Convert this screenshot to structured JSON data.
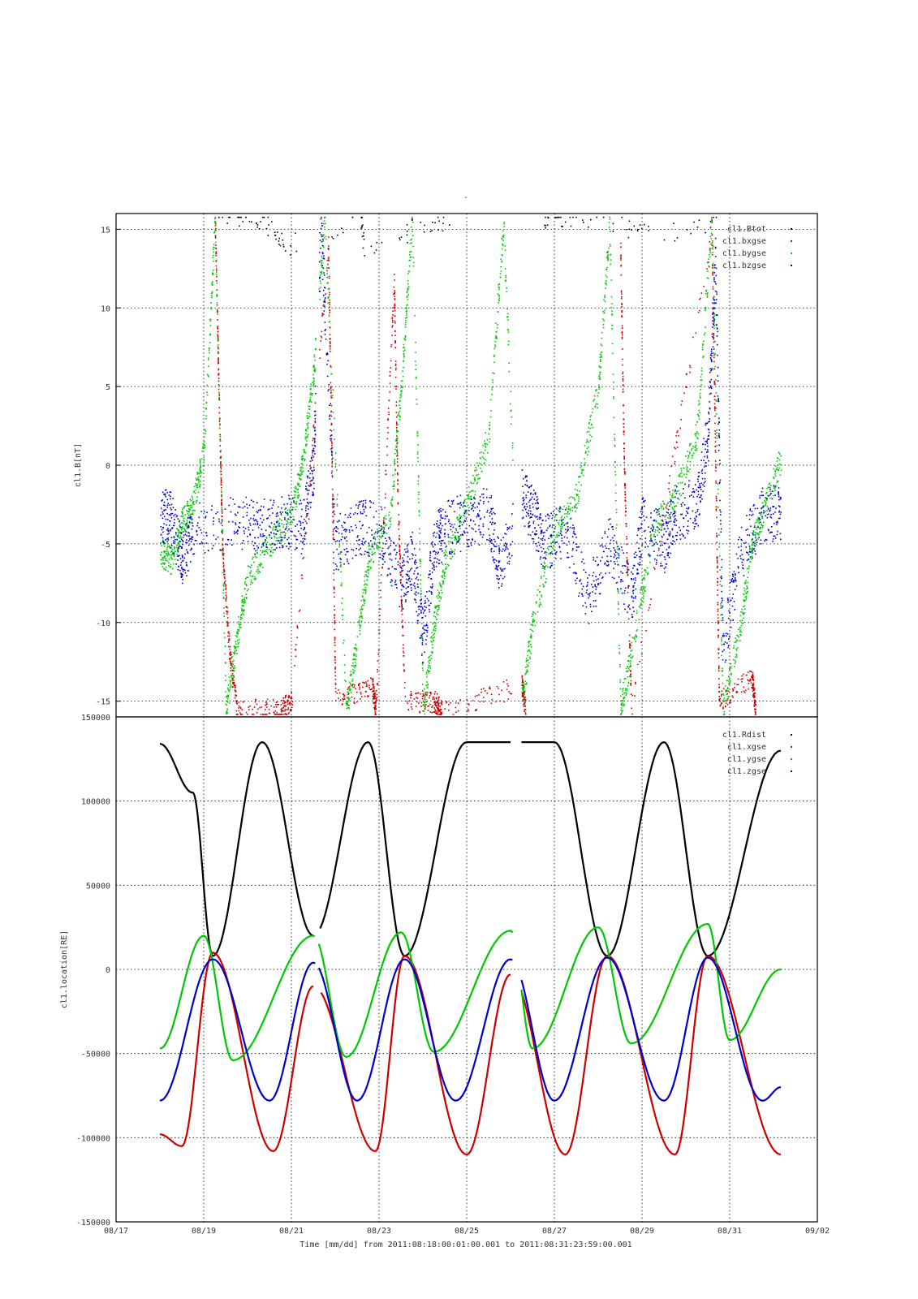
{
  "figure_mark": "-",
  "chart_data": [
    {
      "type": "scatter",
      "panel": "top",
      "ylabel": "cl1.B[nT]",
      "ylim": [
        -16,
        16
      ],
      "yticks": [
        15,
        10,
        5,
        0,
        -5,
        -10,
        -15
      ],
      "ytick_labels": [
        "15",
        "10",
        "5",
        "0",
        "-5",
        "-10",
        "-15"
      ],
      "xlim": [
        "2011-08-17",
        "2011-09-02"
      ],
      "grid": true,
      "legend_placement": "top-right",
      "series": [
        {
          "name": "cl1.Btot",
          "color": "#000000",
          "description_points": [
            [
              "2011-08-19 08:00",
              15.8
            ],
            [
              "2011-08-20 00:00",
              15.9
            ],
            [
              "2011-08-20 12:00",
              15.2
            ],
            [
              "2011-08-20 20:00",
              14.0
            ],
            [
              "2011-08-22 14:00",
              15.5
            ],
            [
              "2011-08-22 16:00",
              13.5
            ],
            [
              "2011-08-23 18:00",
              15.0
            ],
            [
              "2011-08-24 16:00",
              15.8
            ],
            [
              "2011-08-26 18:00",
              15.8
            ],
            [
              "2011-08-27 04:00",
              15.9
            ],
            [
              "2011-08-28 08:00",
              15.5
            ],
            [
              "2011-08-29 04:00",
              14.5
            ],
            [
              "2011-08-30 18:00",
              15.6
            ]
          ]
        },
        {
          "name": "cl1.bxgse",
          "color": "#cc0000",
          "description_points": [
            [
              "2011-08-19 06:00",
              15.8
            ],
            [
              "2011-08-19 08:00",
              5.0
            ],
            [
              "2011-08-19 10:00",
              -5.0
            ],
            [
              "2011-08-19 14:00",
              -12.0
            ],
            [
              "2011-08-19 18:00",
              -15.5
            ],
            [
              "2011-08-20 18:00",
              -15.5
            ],
            [
              "2011-08-21 00:00",
              -15.0
            ],
            [
              "2011-08-21 20:00",
              14.0
            ],
            [
              "2011-08-21 22:00",
              0.0
            ],
            [
              "2011-08-22 00:00",
              -15.0
            ],
            [
              "2011-08-22 20:00",
              -14.0
            ],
            [
              "2011-08-22 22:00",
              -15.5
            ],
            [
              "2011-08-23 08:00",
              12.0
            ],
            [
              "2011-08-23 10:00",
              -2.0
            ],
            [
              "2011-08-23 14:00",
              -15.0
            ],
            [
              "2011-08-24 06:00",
              -15.0
            ],
            [
              "2011-08-24 10:00",
              -15.5
            ],
            [
              "2011-08-26 06:00",
              -14.0
            ],
            [
              "2011-08-26 08:00",
              -15.5
            ],
            [
              "2011-08-28 12:00",
              14.0
            ],
            [
              "2011-08-28 14:00",
              0.0
            ],
            [
              "2011-08-28 18:00",
              -15.5
            ],
            [
              "2011-08-30 14:00",
              15.0
            ],
            [
              "2011-08-30 16:00",
              0.0
            ],
            [
              "2011-08-30 18:00",
              -15.0
            ],
            [
              "2011-08-31 12:00",
              -13.5
            ],
            [
              "2011-08-31 14:00",
              -15.5
            ]
          ]
        },
        {
          "name": "cl1.bygse",
          "color": "#00c800",
          "description_points": [
            [
              "2011-08-18 00:00",
              -5.5
            ],
            [
              "2011-08-18 06:00",
              -6.0
            ],
            [
              "2011-08-18 12:00",
              -3.5
            ],
            [
              "2011-08-18 18:00",
              -2.5
            ],
            [
              "2011-08-19 00:00",
              1.0
            ],
            [
              "2011-08-19 06:00",
              15.8
            ],
            [
              "2011-08-19 12:00",
              -15.5
            ],
            [
              "2011-08-19 18:00",
              -11.0
            ],
            [
              "2011-08-20 00:00",
              -7.0
            ],
            [
              "2011-08-20 12:00",
              -5.0
            ],
            [
              "2011-08-21 00:00",
              -3.0
            ],
            [
              "2011-08-21 06:00",
              0.0
            ],
            [
              "2011-08-21 12:00",
              6.0
            ],
            [
              "2011-08-21 18:00",
              15.8
            ],
            [
              "2011-08-22 06:00",
              -15.5
            ],
            [
              "2011-08-22 12:00",
              -11.0
            ],
            [
              "2011-08-22 18:00",
              -6.0
            ],
            [
              "2011-08-23 06:00",
              -3.0
            ],
            [
              "2011-08-23 12:00",
              5.0
            ],
            [
              "2011-08-23 18:00",
              15.8
            ],
            [
              "2011-08-24 00:00",
              -15.5
            ],
            [
              "2011-08-24 06:00",
              -10.0
            ],
            [
              "2011-08-24 12:00",
              -6.0
            ],
            [
              "2011-08-25 00:00",
              -2.5
            ],
            [
              "2011-08-25 12:00",
              2.0
            ],
            [
              "2011-08-25 20:00",
              15.5
            ],
            [
              "2011-08-26 06:00",
              -15.0
            ],
            [
              "2011-08-26 12:00",
              -10.0
            ],
            [
              "2011-08-27 00:00",
              -4.0
            ],
            [
              "2011-08-27 12:00",
              -2.0
            ],
            [
              "2011-08-28 00:00",
              5.0
            ],
            [
              "2011-08-28 06:00",
              15.5
            ],
            [
              "2011-08-28 12:00",
              -15.5
            ],
            [
              "2011-08-28 18:00",
              -12.0
            ],
            [
              "2011-08-29 06:00",
              -4.0
            ],
            [
              "2011-08-29 18:00",
              -2.0
            ],
            [
              "2011-08-30 06:00",
              2.0
            ],
            [
              "2011-08-30 14:00",
              15.8
            ],
            [
              "2011-08-30 20:00",
              -15.5
            ],
            [
              "2011-08-31 06:00",
              -10.0
            ],
            [
              "2011-08-31 12:00",
              -5.0
            ],
            [
              "2011-08-31 18:00",
              -3.0
            ],
            [
              "2011-09-01 04:00",
              0.5
            ]
          ]
        },
        {
          "name": "cl1.bzgse",
          "color": "#0000c8",
          "description_points": [
            [
              "2011-08-18 00:00",
              -3.0
            ],
            [
              "2011-08-18 06:00",
              -3.5
            ],
            [
              "2011-08-18 12:00",
              -6.0
            ],
            [
              "2011-08-18 18:00",
              -4.0
            ],
            [
              "2011-08-19 18:00",
              -3.5
            ],
            [
              "2011-08-20 06:00",
              -4.0
            ],
            [
              "2011-08-20 18:00",
              -3.5
            ],
            [
              "2011-08-21 06:00",
              -4.0
            ],
            [
              "2011-08-21 12:00",
              0.0
            ],
            [
              "2011-08-21 16:00",
              15.5
            ],
            [
              "2011-08-22 00:00",
              -5.0
            ],
            [
              "2011-08-22 12:00",
              -4.0
            ],
            [
              "2011-08-23 00:00",
              -4.0
            ],
            [
              "2011-08-23 12:00",
              -7.5
            ],
            [
              "2011-08-23 18:00",
              -6.0
            ],
            [
              "2011-08-24 00:00",
              -11.0
            ],
            [
              "2011-08-24 06:00",
              -5.0
            ],
            [
              "2011-08-24 12:00",
              -4.0
            ],
            [
              "2011-08-25 00:00",
              -3.5
            ],
            [
              "2011-08-25 12:00",
              -3.0
            ],
            [
              "2011-08-25 18:00",
              -6.5
            ],
            [
              "2011-08-26 06:00",
              -2.0
            ],
            [
              "2011-08-26 12:00",
              -3.0
            ],
            [
              "2011-08-26 18:00",
              -5.0
            ],
            [
              "2011-08-27 06:00",
              -4.0
            ],
            [
              "2011-08-27 18:00",
              -8.5
            ],
            [
              "2011-08-28 06:00",
              -5.0
            ],
            [
              "2011-08-28 18:00",
              -8.5
            ],
            [
              "2011-08-29 00:00",
              -3.5
            ],
            [
              "2011-08-29 12:00",
              -5.0
            ],
            [
              "2011-08-29 18:00",
              -3.0
            ],
            [
              "2011-08-30 06:00",
              -2.5
            ],
            [
              "2011-08-30 12:00",
              2.0
            ],
            [
              "2011-08-30 16:00",
              13.0
            ],
            [
              "2011-08-30 20:00",
              -11.5
            ],
            [
              "2011-08-31 06:00",
              -5.5
            ],
            [
              "2011-08-31 18:00",
              -3.0
            ],
            [
              "2011-09-01 04:00",
              -3.0
            ]
          ]
        }
      ]
    },
    {
      "type": "line",
      "panel": "bottom",
      "ylabel": "cl1.location[RE]",
      "xlabel": "Time [mm/dd]  from 2011:08:18:00:01:00.001  to  2011:08:31:23:59:00.001",
      "ylim": [
        -150000,
        150000
      ],
      "yticks": [
        150000,
        100000,
        50000,
        0,
        -50000,
        -100000,
        -150000
      ],
      "ytick_labels": [
        "150000",
        "100000",
        "50000",
        "0",
        "-50000",
        "-100000",
        "-150000"
      ],
      "xlim": [
        "2011-08-17",
        "2011-09-02"
      ],
      "xticks": [
        "2011-08-17",
        "2011-08-19",
        "2011-08-21",
        "2011-08-23",
        "2011-08-25",
        "2011-08-27",
        "2011-08-29",
        "2011-08-31",
        "2011-09-02"
      ],
      "xtick_labels": [
        "08/17",
        "08/19",
        "08/21",
        "08/23",
        "08/25",
        "08/27",
        "08/29",
        "08/31",
        "09/02"
      ],
      "grid": true,
      "legend_placement": "top-right",
      "data_gaps": [
        [
          "2011-08-21 13:00",
          "2011-08-21 15:00"
        ],
        [
          "2011-08-26 01:00",
          "2011-08-26 06:00"
        ]
      ],
      "series": [
        {
          "name": "cl1.Rdist",
          "color": "#000000",
          "description": "periodic orbit (~2.27 day period), apogee ~135000, perigee near 8000; samples:",
          "points": [
            [
              "2011-08-18 00:00",
              134000
            ],
            [
              "2011-08-18 18:00",
              105000
            ],
            [
              "2011-08-19 05:00",
              8000
            ],
            [
              "2011-08-20 08:00",
              135000
            ],
            [
              "2011-08-21 12:00",
              20000
            ],
            [
              "2011-08-22 18:00",
              135000
            ],
            [
              "2011-08-23 14:00",
              8000
            ],
            [
              "2011-08-25 00:00",
              135000
            ],
            [
              "2011-08-27 00:00",
              135000
            ],
            [
              "2011-08-28 05:00",
              8000
            ],
            [
              "2011-08-29 12:00",
              135000
            ],
            [
              "2011-08-30 12:00",
              8000
            ],
            [
              "2011-09-01 04:00",
              130000
            ]
          ]
        },
        {
          "name": "cl1.xgse",
          "color": "#cc0000",
          "points": [
            [
              "2011-08-18 00:00",
              -98000
            ],
            [
              "2011-08-18 12:00",
              -105000
            ],
            [
              "2011-08-19 05:00",
              10000
            ],
            [
              "2011-08-20 14:00",
              -108000
            ],
            [
              "2011-08-21 12:00",
              -10000
            ],
            [
              "2011-08-22 22:00",
              -108000
            ],
            [
              "2011-08-23 14:00",
              8000
            ],
            [
              "2011-08-25 00:00",
              -110000
            ],
            [
              "2011-08-26 00:00",
              -3000
            ],
            [
              "2011-08-27 06:00",
              -110000
            ],
            [
              "2011-08-28 05:00",
              8000
            ],
            [
              "2011-08-29 18:00",
              -110000
            ],
            [
              "2011-08-30 12:00",
              8000
            ],
            [
              "2011-09-01 04:00",
              -110000
            ]
          ]
        },
        {
          "name": "cl1.ygse",
          "color": "#00c800",
          "points": [
            [
              "2011-08-18 00:00",
              -47000
            ],
            [
              "2011-08-19 00:00",
              20000
            ],
            [
              "2011-08-19 16:00",
              -54000
            ],
            [
              "2011-08-21 12:00",
              20000
            ],
            [
              "2011-08-22 06:00",
              -52000
            ],
            [
              "2011-08-23 12:00",
              22000
            ],
            [
              "2011-08-24 06:00",
              -49000
            ],
            [
              "2011-08-26 00:00",
              23000
            ],
            [
              "2011-08-26 12:00",
              -47000
            ],
            [
              "2011-08-28 00:00",
              25000
            ],
            [
              "2011-08-28 18:00",
              -44000
            ],
            [
              "2011-08-30 12:00",
              27000
            ],
            [
              "2011-08-31 00:00",
              -42000
            ],
            [
              "2011-09-01 04:00",
              0
            ]
          ]
        },
        {
          "name": "cl1.zgse",
          "color": "#0000c8",
          "points": [
            [
              "2011-08-18 00:00",
              -78000
            ],
            [
              "2011-08-19 05:00",
              6000
            ],
            [
              "2011-08-20 12:00",
              -78000
            ],
            [
              "2011-08-21 12:00",
              4000
            ],
            [
              "2011-08-22 12:00",
              -78000
            ],
            [
              "2011-08-23 14:00",
              6000
            ],
            [
              "2011-08-24 18:00",
              -78000
            ],
            [
              "2011-08-26 00:00",
              6000
            ],
            [
              "2011-08-27 00:00",
              -78000
            ],
            [
              "2011-08-28 05:00",
              7000
            ],
            [
              "2011-08-29 12:00",
              -78000
            ],
            [
              "2011-08-30 12:00",
              7000
            ],
            [
              "2011-08-31 18:00",
              -78000
            ],
            [
              "2011-09-01 04:00",
              -70000
            ]
          ]
        }
      ]
    }
  ]
}
